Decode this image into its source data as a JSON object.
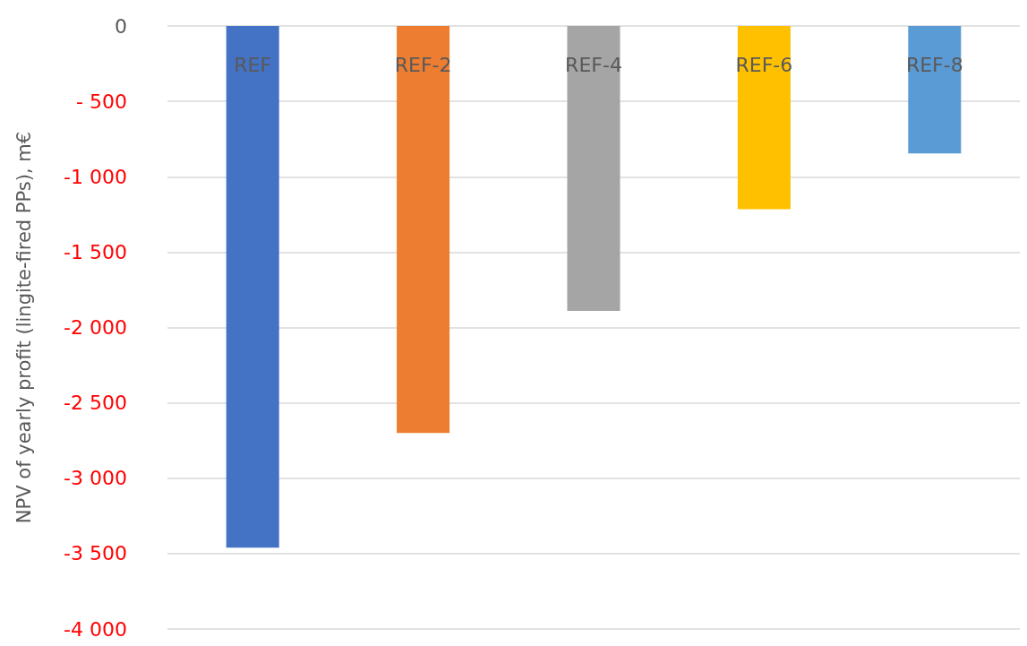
{
  "chart_data": {
    "type": "bar",
    "ylabel": "NPV of yearly profit (lingite-fired PPs), m€",
    "categories": [
      "REF",
      "REF-2",
      "REF-4",
      "REF-6",
      "REF-8"
    ],
    "values": [
      -3460,
      -2700,
      -1890,
      -1215,
      -845
    ],
    "colors": [
      "#4472c4",
      "#ed7d31",
      "#a5a5a5",
      "#ffc000",
      "#5b9bd5"
    ],
    "ylim": [
      -4000,
      0
    ],
    "yticks": [
      {
        "value": -4000,
        "label": "-4 000"
      },
      {
        "value": -3500,
        "label": "-3 500"
      },
      {
        "value": -3000,
        "label": "-3 000"
      },
      {
        "value": -2500,
        "label": "-2 500"
      },
      {
        "value": -2000,
        "label": "-2 000"
      },
      {
        "value": -1500,
        "label": "-1 500"
      },
      {
        "value": -1000,
        "label": "-1 000"
      },
      {
        "value": -500,
        "label": "- 500"
      },
      0
    ],
    "grid": "y"
  }
}
